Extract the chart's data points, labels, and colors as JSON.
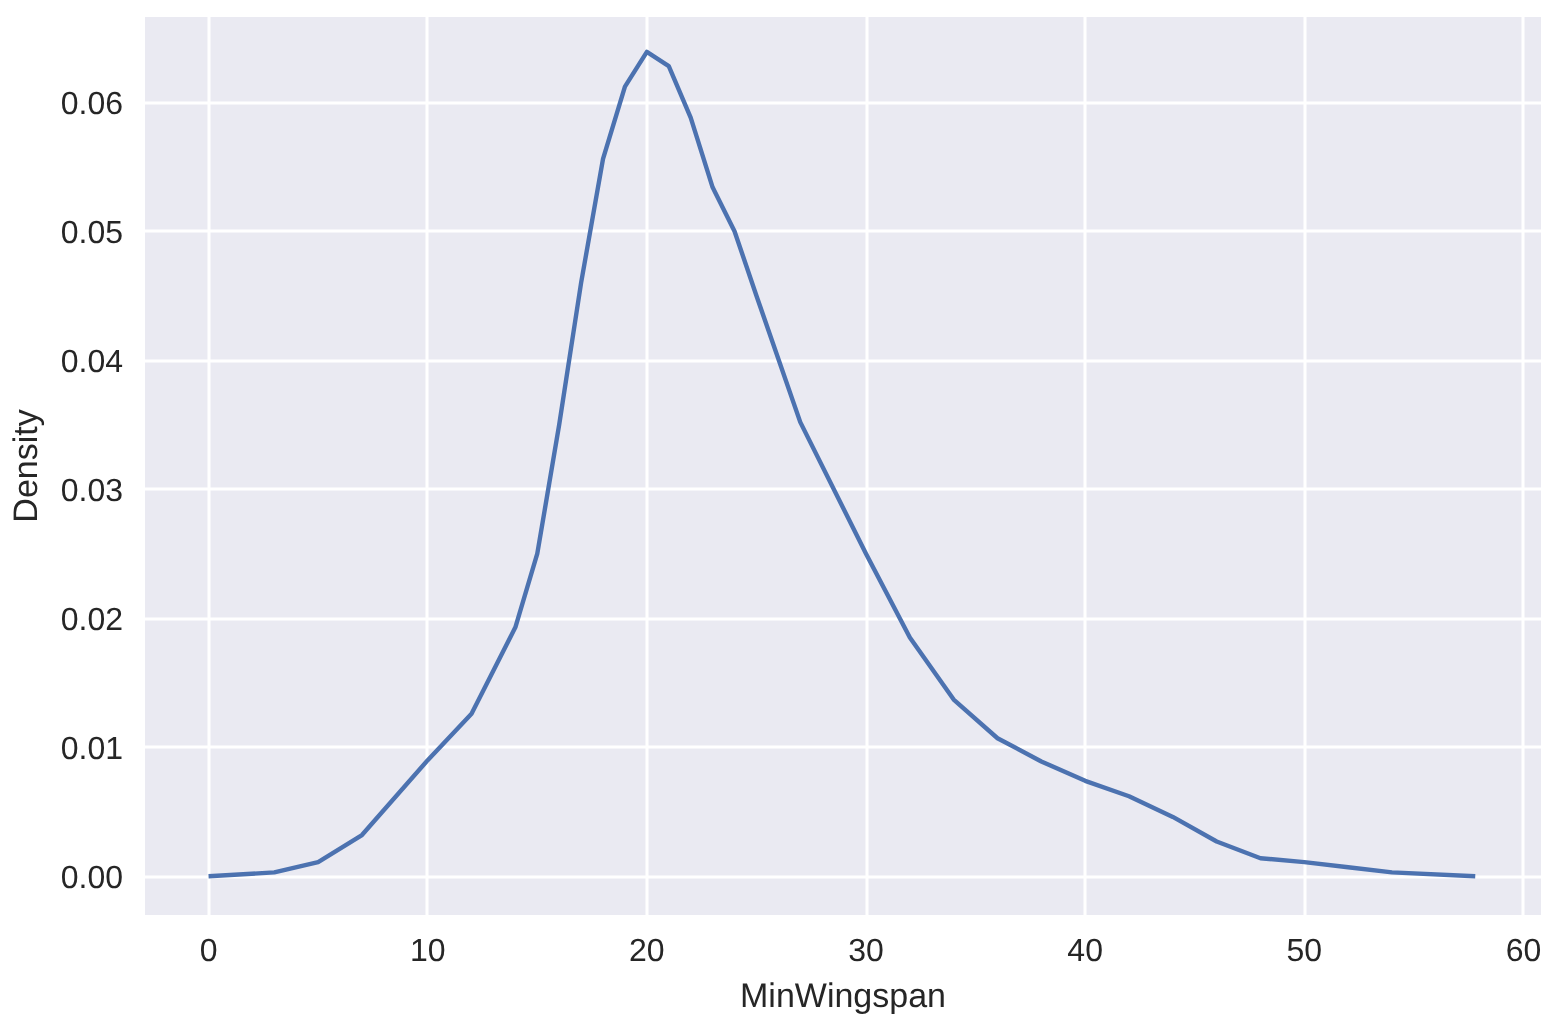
{
  "chart_data": {
    "type": "line",
    "xlabel": "MinWingspan",
    "ylabel": "Density",
    "x": [
      0,
      3,
      5,
      7,
      10,
      12,
      14,
      15,
      16,
      17,
      18,
      19,
      20,
      21,
      22,
      23,
      24,
      25,
      27,
      30,
      32,
      34,
      36,
      38,
      40,
      42,
      44,
      46,
      48,
      50,
      52,
      54,
      57.8
    ],
    "series": [
      {
        "color": "#4c72b0",
        "values": [
          0,
          0.0003,
          0.0011,
          0.0032,
          0.009,
          0.0126,
          0.0193,
          0.025,
          0.035,
          0.046,
          0.0556,
          0.0612,
          0.0639,
          0.0628,
          0.0588,
          0.0534,
          0.05,
          0.045,
          0.0352,
          0.025,
          0.0185,
          0.0137,
          0.0107,
          0.0089,
          0.0074,
          0.0062,
          0.0046,
          0.0027,
          0.0014,
          0.0011,
          0.0007,
          0.0003,
          0
        ]
      }
    ],
    "xlim": [
      -2.9,
      60.8
    ],
    "ylim": [
      -0.003,
      0.0666
    ],
    "xticks": [
      0,
      10,
      20,
      30,
      40,
      50,
      60
    ],
    "yticks": [
      {
        "value": 0,
        "label": "0.00"
      },
      {
        "value": 0.01,
        "label": "0.01"
      },
      {
        "value": 0.02,
        "label": "0.02"
      },
      {
        "value": 0.03,
        "label": "0.03"
      },
      {
        "value": 0.04,
        "label": "0.04"
      },
      {
        "value": 0.05,
        "label": "0.05"
      },
      {
        "value": 0.06,
        "label": "0.06"
      }
    ],
    "grid": true
  }
}
